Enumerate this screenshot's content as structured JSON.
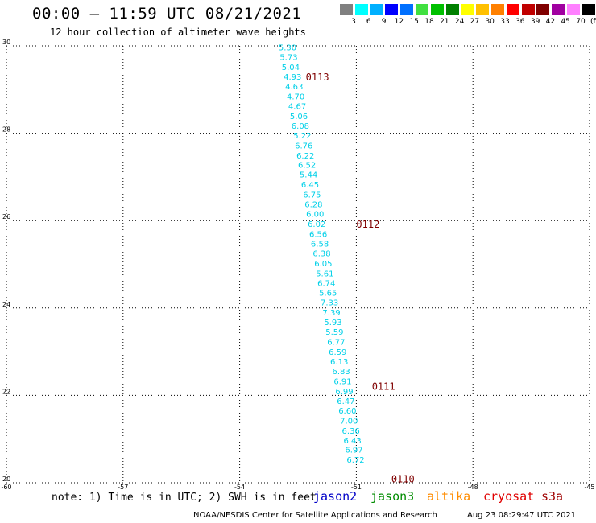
{
  "header": {
    "title": "00:00 – 11:59 UTC 08/21/2021",
    "subtitle": "12 hour collection of altimeter wave heights"
  },
  "color_scale": {
    "unit": "(ft)",
    "colors": [
      "#808080",
      "#00ffff",
      "#00b0ff",
      "#0000ff",
      "#0070ff",
      "#40e040",
      "#00c000",
      "#008000",
      "#ffff00",
      "#ffc000",
      "#ff8000",
      "#ff0000",
      "#c00000",
      "#800000",
      "#a000a0",
      "#ff80ff",
      "#000000"
    ],
    "labels": [
      "3",
      "6",
      "9",
      "12",
      "15",
      "18",
      "21",
      "24",
      "27",
      "30",
      "33",
      "36",
      "39",
      "42",
      "45",
      "70",
      "(ft)"
    ]
  },
  "satellites": [
    {
      "name": "jason2",
      "color": "#0000c8"
    },
    {
      "name": "jason3",
      "color": "#008c00"
    },
    {
      "name": "altika",
      "color": "#ff8c00"
    },
    {
      "name": "cryosat",
      "color": "#e00000"
    },
    {
      "name": "s3a",
      "color": "#a00000"
    }
  ],
  "footer": {
    "note": "note: 1) Time is in UTC; 2) SWH is in feet",
    "credit": "NOAA/NESDIS Center for Satellite Applications and Research",
    "timestamp": "Aug 23 08:29:47 UTC 2021"
  },
  "chart_data": {
    "type": "scatter",
    "xlim": [
      -60,
      -45
    ],
    "ylim": [
      20,
      30
    ],
    "x_ticks": [
      "-60",
      "-57",
      "-54",
      "-51",
      "-48",
      "-45"
    ],
    "y_ticks": [
      "20",
      "22",
      "24",
      "26",
      "28",
      "30"
    ],
    "grid": true,
    "label_color": "#00d0e8",
    "time_label_color": "#800000",
    "points": [
      {
        "x": -53.0,
        "y": 29.97,
        "v": "5.30"
      },
      {
        "x": -52.97,
        "y": 29.75,
        "v": "5.73"
      },
      {
        "x": -52.92,
        "y": 29.52,
        "v": "5.04"
      },
      {
        "x": -52.87,
        "y": 29.3,
        "v": "4.93"
      },
      {
        "x": -52.83,
        "y": 29.08,
        "v": "4.63"
      },
      {
        "x": -52.79,
        "y": 28.85,
        "v": "4.70"
      },
      {
        "x": -52.75,
        "y": 28.63,
        "v": "4.67"
      },
      {
        "x": -52.71,
        "y": 28.4,
        "v": "5.06"
      },
      {
        "x": -52.67,
        "y": 28.18,
        "v": "6.08"
      },
      {
        "x": -52.62,
        "y": 27.96,
        "v": "5.22"
      },
      {
        "x": -52.58,
        "y": 27.73,
        "v": "6.76"
      },
      {
        "x": -52.54,
        "y": 27.5,
        "v": "6.22"
      },
      {
        "x": -52.5,
        "y": 27.28,
        "v": "6.52"
      },
      {
        "x": -52.46,
        "y": 27.06,
        "v": "5.44"
      },
      {
        "x": -52.42,
        "y": 26.83,
        "v": "6.45"
      },
      {
        "x": -52.37,
        "y": 26.6,
        "v": "6.75"
      },
      {
        "x": -52.33,
        "y": 26.38,
        "v": "6.28"
      },
      {
        "x": -52.29,
        "y": 26.16,
        "v": "6.00"
      },
      {
        "x": -52.25,
        "y": 25.93,
        "v": "6.02"
      },
      {
        "x": -52.21,
        "y": 25.7,
        "v": "6.56"
      },
      {
        "x": -52.17,
        "y": 25.48,
        "v": "6.58"
      },
      {
        "x": -52.12,
        "y": 25.26,
        "v": "6.38"
      },
      {
        "x": -52.08,
        "y": 25.03,
        "v": "6.05"
      },
      {
        "x": -52.04,
        "y": 24.8,
        "v": "5.61"
      },
      {
        "x": -52.0,
        "y": 24.58,
        "v": "6.74"
      },
      {
        "x": -51.96,
        "y": 24.36,
        "v": "5.65"
      },
      {
        "x": -51.92,
        "y": 24.13,
        "v": "7.33"
      },
      {
        "x": -51.87,
        "y": 23.9,
        "v": "7.39"
      },
      {
        "x": -51.83,
        "y": 23.68,
        "v": "5.93"
      },
      {
        "x": -51.79,
        "y": 23.46,
        "v": "5.59"
      },
      {
        "x": -51.75,
        "y": 23.23,
        "v": "6.77"
      },
      {
        "x": -51.71,
        "y": 23.0,
        "v": "6.59"
      },
      {
        "x": -51.67,
        "y": 22.78,
        "v": "6.13"
      },
      {
        "x": -51.62,
        "y": 22.56,
        "v": "6.83"
      },
      {
        "x": -51.58,
        "y": 22.33,
        "v": "6.91"
      },
      {
        "x": -51.54,
        "y": 22.1,
        "v": "6.99"
      },
      {
        "x": -51.5,
        "y": 21.88,
        "v": "6.47"
      },
      {
        "x": -51.46,
        "y": 21.66,
        "v": "6.60"
      },
      {
        "x": -51.42,
        "y": 21.43,
        "v": "7.00"
      },
      {
        "x": -51.37,
        "y": 21.2,
        "v": "6.36"
      },
      {
        "x": -51.33,
        "y": 20.98,
        "v": "6.43"
      },
      {
        "x": -51.29,
        "y": 20.76,
        "v": "6.97"
      },
      {
        "x": -51.25,
        "y": 20.53,
        "v": "6.72"
      }
    ],
    "time_labels": [
      {
        "text": "0113",
        "x": -52.3,
        "y": 29.3
      },
      {
        "text": "0112",
        "x": -51.0,
        "y": 25.93
      },
      {
        "text": "0111",
        "x": -50.6,
        "y": 22.22
      },
      {
        "text": "0110",
        "x": -50.1,
        "y": 20.1
      }
    ]
  }
}
